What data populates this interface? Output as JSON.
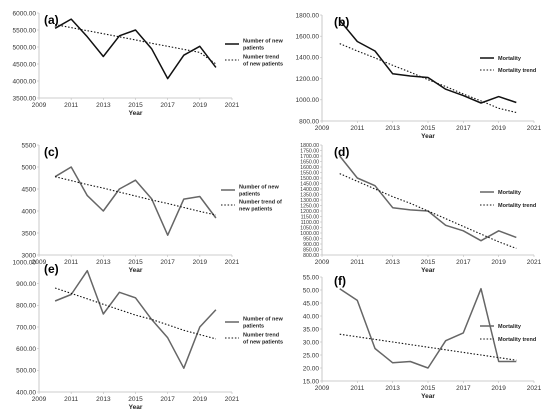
{
  "chart_data": [
    {
      "panel_label": "(a)",
      "type": "line",
      "xlabel": "Year",
      "x": [
        2010,
        2011,
        2012,
        2013,
        2014,
        2015,
        2016,
        2017,
        2018,
        2019,
        2020
      ],
      "xlim": [
        2009,
        2021
      ],
      "xticks": [
        "2009",
        "2011",
        "2013",
        "2015",
        "2017",
        "2019",
        "2021"
      ],
      "ylim": [
        3500,
        6000
      ],
      "yticks": [
        "3500.00",
        "4000.00",
        "4500.00",
        "5000.00",
        "5500.00",
        "6000.00"
      ],
      "series": [
        {
          "name": "Number of new patients",
          "style": "solid",
          "color": "#111111",
          "values": [
            5550,
            5820,
            5300,
            4720,
            5330,
            5500,
            4950,
            4070,
            4760,
            5020,
            4400
          ]
        },
        {
          "name": "Number trend of new patients",
          "style": "dotted",
          "color": "#111111",
          "values": [
            5660,
            5570,
            5480,
            5390,
            5300,
            5210,
            5110,
            5020,
            4930,
            4840,
            4500
          ]
        }
      ]
    },
    {
      "panel_label": "(b)",
      "type": "line",
      "xlabel": "Year",
      "x": [
        2010,
        2011,
        2012,
        2013,
        2014,
        2015,
        2016,
        2017,
        2018,
        2019,
        2020
      ],
      "xlim": [
        2009,
        2021
      ],
      "xticks": [
        "2009",
        "2011",
        "2013",
        "2015",
        "2017",
        "2019",
        "2021"
      ],
      "ylim": [
        800,
        1800
      ],
      "yticks": [
        "800.00",
        "1000.00",
        "1200.00",
        "1400.00",
        "1600.00",
        "1800.00"
      ],
      "series": [
        {
          "name": "Mortality",
          "style": "solid",
          "color": "#111111",
          "values": [
            1750,
            1550,
            1460,
            1245,
            1225,
            1210,
            1100,
            1040,
            970,
            1030,
            975
          ]
        },
        {
          "name": "Mortality trend",
          "style": "dotted",
          "color": "#111111",
          "values": [
            1530,
            1460,
            1395,
            1325,
            1260,
            1190,
            1125,
            1055,
            990,
            920,
            880
          ]
        }
      ]
    },
    {
      "panel_label": "(c)",
      "type": "line",
      "xlabel": "Year",
      "x": [
        2010,
        2011,
        2012,
        2013,
        2014,
        2015,
        2016,
        2017,
        2018,
        2019,
        2020
      ],
      "xlim": [
        2009,
        2021
      ],
      "xticks": [
        "2009",
        "2011",
        "2013",
        "2015",
        "2017",
        "2019",
        "2021"
      ],
      "ylim": [
        3000,
        5500
      ],
      "yticks": [
        "3000",
        "3500",
        "4000",
        "4500",
        "5000",
        "5500"
      ],
      "series": [
        {
          "name": "Number of new patients",
          "style": "solid",
          "color": "#666666",
          "values": [
            4780,
            5000,
            4350,
            4000,
            4500,
            4700,
            4280,
            3450,
            4270,
            4330,
            3840
          ]
        },
        {
          "name": "Number trend of new patients",
          "style": "dotted",
          "color": "#111111",
          "values": [
            4780,
            4690,
            4600,
            4520,
            4430,
            4340,
            4250,
            4170,
            4080,
            3990,
            3910
          ]
        }
      ]
    },
    {
      "panel_label": "(d)",
      "type": "line",
      "xlabel": "Year",
      "x": [
        2010,
        2011,
        2012,
        2013,
        2014,
        2015,
        2016,
        2017,
        2018,
        2019,
        2020
      ],
      "xlim": [
        2009,
        2021
      ],
      "xticks": [
        "2009",
        "2011",
        "2013",
        "2015",
        "2017",
        "2019",
        "2021"
      ],
      "ylim": [
        800,
        1800
      ],
      "yticks": [
        "800.00",
        "850.00",
        "900.00",
        "950.00",
        "1000.00",
        "1050.00",
        "1100.00",
        "1150.00",
        "1200.00",
        "1250.00",
        "1300.00",
        "1350.00",
        "1400.00",
        "1450.00",
        "1500.00",
        "1550.00",
        "1600.00",
        "1650.00",
        "1700.00",
        "1750.00",
        "1800.00"
      ],
      "series": [
        {
          "name": "Mortality",
          "style": "solid",
          "color": "#666666",
          "values": [
            1700,
            1500,
            1430,
            1230,
            1210,
            1200,
            1070,
            1020,
            930,
            1020,
            960
          ]
        },
        {
          "name": "Mortality trend",
          "style": "dotted",
          "color": "#111111",
          "values": [
            1540,
            1470,
            1400,
            1330,
            1270,
            1200,
            1130,
            1060,
            990,
            920,
            860
          ]
        }
      ]
    },
    {
      "panel_label": "(e)",
      "type": "line",
      "xlabel": "Year",
      "x": [
        2010,
        2011,
        2012,
        2013,
        2014,
        2015,
        2016,
        2017,
        2018,
        2019,
        2020
      ],
      "xlim": [
        2009,
        2021
      ],
      "xticks": [
        "2009",
        "2011",
        "2013",
        "2015",
        "2017",
        "2019",
        "2021"
      ],
      "ylim": [
        400,
        1000
      ],
      "yticks": [
        "400.00",
        "500.00",
        "600.00",
        "700.00",
        "800.00",
        "900.00",
        "1000.00"
      ],
      "series": [
        {
          "name": "Number of new patients",
          "style": "solid",
          "color": "#666666",
          "values": [
            820,
            850,
            960,
            760,
            860,
            835,
            735,
            650,
            510,
            700,
            780
          ]
        },
        {
          "name": "Number trend of new patients",
          "style": "dotted",
          "color": "#111111",
          "values": [
            880,
            855,
            830,
            805,
            780,
            755,
            735,
            710,
            685,
            665,
            645
          ]
        }
      ]
    },
    {
      "panel_label": "(f)",
      "type": "line",
      "xlabel": "Year",
      "x": [
        2010,
        2011,
        2012,
        2013,
        2014,
        2015,
        2016,
        2017,
        2018,
        2019,
        2020
      ],
      "xlim": [
        2009,
        2021
      ],
      "xticks": [
        "2009",
        "2011",
        "2013",
        "2015",
        "2017",
        "2019",
        "2021"
      ],
      "ylim": [
        15,
        55
      ],
      "yticks": [
        "15.00",
        "20.00",
        "25.00",
        "30.00",
        "35.00",
        "40.00",
        "45.00",
        "50.00",
        "55.00"
      ],
      "series": [
        {
          "name": "Mortality",
          "style": "solid",
          "color": "#666666",
          "values": [
            50.5,
            46,
            27.5,
            22,
            22.5,
            20,
            30.5,
            33.5,
            50.5,
            22.5,
            22.5
          ]
        },
        {
          "name": "Mortality trend",
          "style": "dotted",
          "color": "#111111",
          "values": [
            33,
            32,
            31,
            30,
            29,
            28,
            27,
            26,
            25,
            24,
            23
          ]
        }
      ]
    }
  ]
}
